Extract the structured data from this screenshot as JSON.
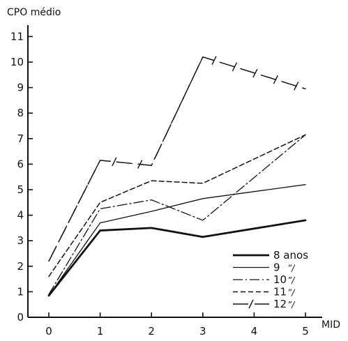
{
  "chart_data": {
    "type": "line",
    "ylabel": "CPO médio",
    "xlabel": "MID",
    "x": [
      0,
      1,
      2,
      3,
      4,
      5
    ],
    "xlim": [
      0,
      5
    ],
    "ylim": [
      0,
      11
    ],
    "yticks": [
      0,
      1,
      2,
      3,
      4,
      5,
      6,
      7,
      8,
      9,
      10,
      11
    ],
    "xticks": [
      0,
      1,
      2,
      3,
      4,
      5
    ],
    "grid": false,
    "legend_position": "bottom-right",
    "series": [
      {
        "name": "8 anos",
        "style": "solid-thick",
        "values": [
          0.85,
          3.4,
          3.5,
          3.15,
          null,
          3.8
        ]
      },
      {
        "name": "9",
        "ditto": "”/",
        "style": "solid-thin",
        "values": [
          0.85,
          3.7,
          4.15,
          4.65,
          null,
          5.2
        ]
      },
      {
        "name": "10",
        "ditto": "”/",
        "style": "dash-dot",
        "values": [
          0.9,
          4.25,
          4.6,
          3.8,
          null,
          7.15
        ]
      },
      {
        "name": "11",
        "ditto": "”/",
        "style": "dashed",
        "values": [
          1.6,
          4.5,
          5.35,
          5.25,
          null,
          7.15
        ]
      },
      {
        "name": "12",
        "ditto": "”/",
        "style": "long-dash-slash",
        "values": [
          2.2,
          6.15,
          5.95,
          10.2,
          null,
          8.95
        ]
      }
    ]
  }
}
